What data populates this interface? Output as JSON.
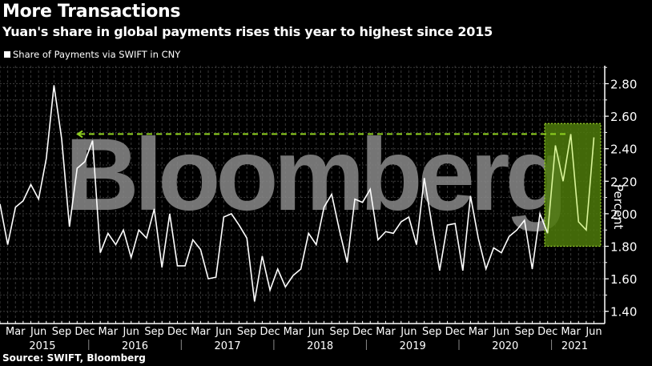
{
  "header": {
    "title": "More Transactions",
    "subtitle": "Yuan's share in global payments rises this year to highest since 2015"
  },
  "legend": {
    "label": "Share of Payments via SWIFT in CNY",
    "color": "#ffffff"
  },
  "footer": {
    "source": "Source: SWIFT, Bloomberg"
  },
  "watermark": "Bloomberg",
  "colors": {
    "background": "#000000",
    "line": "#ffffff",
    "highlight_line": "#d9f59a",
    "highlight_box": "#4e7a0a",
    "highlight_border": "#9ad22a",
    "dashed_ref": "#8fd11f",
    "grid": "#444444",
    "watermark": "#8a8a8a"
  },
  "chart_data": {
    "type": "line",
    "title": "More Transactions",
    "subtitle": "Yuan's share in global payments rises this year to highest since 2015",
    "xlabel": "",
    "ylabel": "Percent",
    "ylim": [
      1.3,
      2.85
    ],
    "yticks": [
      "1.40",
      "1.60",
      "1.80",
      "2.00",
      "2.20",
      "2.40",
      "2.60",
      "2.80"
    ],
    "x_month_ticks": [
      "Mar",
      "Jun",
      "Sep",
      "Dec",
      "Mar",
      "Jun",
      "Sep",
      "Dec",
      "Mar",
      "Jun",
      "Sep",
      "Dec",
      "Mar",
      "Jun",
      "Sep",
      "Dec",
      "Mar",
      "Jun",
      "Sep",
      "Dec",
      "Mar",
      "Jun",
      "Sep",
      "Dec",
      "Mar",
      "Jun"
    ],
    "x_year_labels": [
      "2015",
      "2016",
      "2017",
      "2018",
      "2019",
      "2020",
      "2021"
    ],
    "grid": true,
    "legend_position": "top-left",
    "series": [
      {
        "name": "Share of Payments via SWIFT in CNY",
        "x_start": "2015-01",
        "x_end": "2021-06",
        "frequency": "monthly",
        "values": [
          2.06,
          1.81,
          2.04,
          2.08,
          2.18,
          2.09,
          2.34,
          2.79,
          2.46,
          1.92,
          2.28,
          2.32,
          2.45,
          1.76,
          1.88,
          1.81,
          1.9,
          1.73,
          1.9,
          1.85,
          2.03,
          1.67,
          2.0,
          1.68,
          1.68,
          1.84,
          1.78,
          1.6,
          1.61,
          1.98,
          2.0,
          1.93,
          1.85,
          1.46,
          1.74,
          1.53,
          1.66,
          1.55,
          1.62,
          1.66,
          1.88,
          1.81,
          2.04,
          2.12,
          1.9,
          1.7,
          2.09,
          2.07,
          2.15,
          1.84,
          1.89,
          1.88,
          1.95,
          1.98,
          1.81,
          2.22,
          1.93,
          1.65,
          1.93,
          1.94,
          1.65,
          2.11,
          1.85,
          1.66,
          1.79,
          1.76,
          1.86,
          1.9,
          1.96,
          1.66,
          2.0,
          1.88,
          2.42,
          2.2,
          2.49,
          1.95,
          1.9,
          2.47
        ]
      }
    ],
    "annotations": [
      {
        "type": "dashed-reference-line",
        "value": 2.49,
        "from": "2015-09",
        "to": "2021-03",
        "color": "#8fd11f"
      },
      {
        "type": "highlight-box",
        "from": "2020-12",
        "to": "2021-06",
        "ymin": 1.8,
        "ymax": 2.55,
        "color": "#4e7a0a"
      }
    ]
  }
}
